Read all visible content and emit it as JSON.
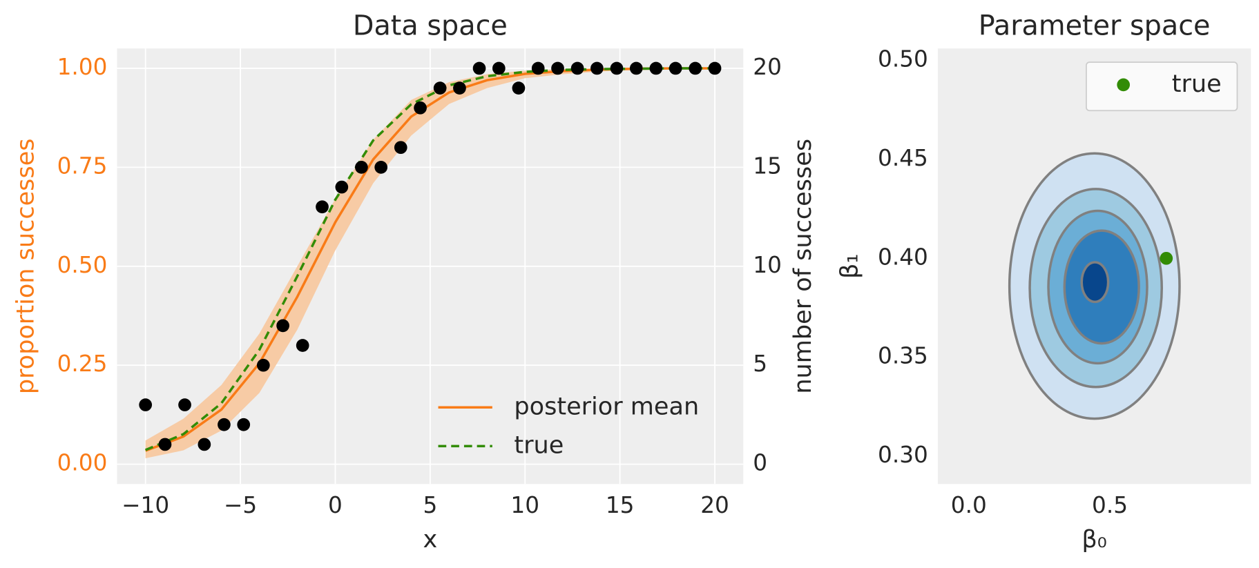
{
  "chart_data": [
    {
      "type": "line",
      "title": "Data space",
      "xlabel": "x",
      "ylabel": "proportion successes",
      "y2label": "number of successes",
      "y_axis_color": "#f97b17",
      "xlim": [
        -11.5,
        21.5
      ],
      "xticks": [
        {
          "value": -10,
          "label": "−10"
        },
        {
          "value": -5,
          "label": "−5"
        },
        0,
        5,
        10,
        15,
        20
      ],
      "ylim": [
        -0.05,
        1.05
      ],
      "yticks": [
        {
          "value": 0,
          "label": "0.00"
        },
        {
          "value": 0.25,
          "label": "0.25"
        },
        {
          "value": 0.5,
          "label": "0.50"
        },
        {
          "value": 0.75,
          "label": "0.75"
        },
        {
          "value": 1,
          "label": "1.00"
        }
      ],
      "y2lim": [
        -1,
        21
      ],
      "y2ticks": [
        0,
        5,
        10,
        15,
        20
      ],
      "grid": true,
      "legend": "lower right",
      "x": [
        -10,
        -8,
        -6,
        -4,
        -2,
        0,
        2,
        4,
        6,
        8,
        10,
        12,
        14,
        16,
        18,
        20
      ],
      "band": {
        "color": "#f7cba5",
        "lower": [
          0.015,
          0.035,
          0.085,
          0.18,
          0.34,
          0.54,
          0.71,
          0.83,
          0.91,
          0.95,
          0.975,
          0.985,
          0.992,
          0.996,
          0.998,
          0.999
        ],
        "upper": [
          0.06,
          0.115,
          0.2,
          0.33,
          0.5,
          0.67,
          0.82,
          0.92,
          0.965,
          0.985,
          0.994,
          0.998,
          0.999,
          1.0,
          1.0,
          1.0
        ]
      },
      "series": [
        {
          "name": "posterior mean",
          "color": "#f97b17",
          "dashed": false,
          "values": [
            0.034,
            0.07,
            0.138,
            0.255,
            0.423,
            0.611,
            0.77,
            0.878,
            0.939,
            0.97,
            0.986,
            0.993,
            0.997,
            0.999,
            1.0,
            1.0
          ]
        },
        {
          "name": "true",
          "color": "#328c06",
          "dashed": true,
          "values": [
            0.036,
            0.076,
            0.154,
            0.289,
            0.475,
            0.668,
            0.818,
            0.909,
            0.957,
            0.98,
            0.991,
            0.996,
            0.998,
            0.999,
            1.0,
            1.0
          ]
        }
      ],
      "points": {
        "color": "#000000",
        "axis": "y2",
        "x": [
          -10,
          -8.97,
          -7.93,
          -6.9,
          -5.86,
          -4.83,
          -3.79,
          -2.76,
          -1.72,
          -0.69,
          0.34,
          1.38,
          2.41,
          3.45,
          4.48,
          5.52,
          6.55,
          7.59,
          8.62,
          9.66,
          10.69,
          11.72,
          12.76,
          13.79,
          14.83,
          15.86,
          16.9,
          17.93,
          18.97,
          20
        ],
        "values": [
          3,
          1,
          3,
          1,
          2,
          2,
          5,
          7,
          6,
          13,
          14,
          15,
          15,
          16,
          18,
          19,
          19,
          20,
          20,
          19,
          20,
          20,
          20,
          20,
          20,
          20,
          20,
          20,
          20,
          20
        ]
      }
    },
    {
      "type": "kde",
      "title": "Parameter space",
      "xlabel": "β₀",
      "ylabel": "β₁",
      "xlim": [
        -0.11,
        1.0
      ],
      "xticks": [
        {
          "value": 0,
          "label": "0.0"
        },
        {
          "value": 0.5,
          "label": "0.5"
        }
      ],
      "ylim": [
        0.286,
        0.506
      ],
      "yticks": [
        {
          "value": 0.3,
          "label": "0.30"
        },
        {
          "value": 0.35,
          "label": "0.35"
        },
        {
          "value": 0.4,
          "label": "0.40"
        },
        {
          "value": 0.45,
          "label": "0.45"
        },
        {
          "value": 0.5,
          "label": "0.50"
        }
      ],
      "grid": false,
      "legend": "upper right",
      "contour_line_color": "#808080",
      "contours": [
        {
          "color": "#cfe1f2",
          "x_range": [
            0.144,
            0.747
          ],
          "y_range": [
            0.319,
            0.453
          ]
        },
        {
          "color": "#9ecae1",
          "x_range": [
            0.216,
            0.684
          ],
          "y_range": [
            0.335,
            0.435
          ]
        },
        {
          "color": "#6baed6",
          "x_range": [
            0.282,
            0.632
          ],
          "y_range": [
            0.347,
            0.424
          ]
        },
        {
          "color": "#2f7ebc",
          "x_range": [
            0.339,
            0.603
          ],
          "y_range": [
            0.357,
            0.414
          ]
        },
        {
          "color": "#08468c",
          "x_range": [
            0.4,
            0.494
          ],
          "y_range": [
            0.378,
            0.398
          ]
        }
      ],
      "series": [
        {
          "name": "true",
          "color": "#328c06",
          "x": [
            0.7
          ],
          "values": [
            0.4
          ]
        }
      ]
    }
  ]
}
